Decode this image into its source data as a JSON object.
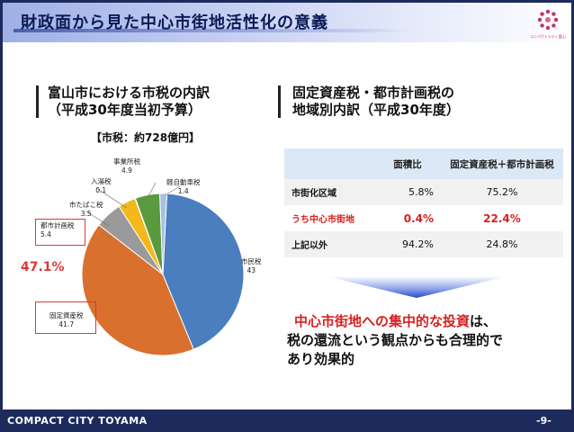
{
  "slide": {
    "title": "財政面から見た中心市街地活性化の意義",
    "logo_text": "コンパクトシティ富山"
  },
  "left_section": {
    "heading_line1": "富山市における市税の内訳",
    "heading_line2": "（平成30年度当初予算）",
    "total_label": "【市税：約728億円】",
    "highlight_percent": "47.1%"
  },
  "chart_data": {
    "type": "pie",
    "title": "【市税：約728億円】",
    "slices": [
      {
        "label": "市民税",
        "value": 43.0,
        "color": "#4a7ebf"
      },
      {
        "label": "固定資産税",
        "value": 41.7,
        "color": "#d9702d"
      },
      {
        "label": "都市計画税",
        "value": 5.4,
        "color": "#9a9a9a"
      },
      {
        "label": "市たばこ税",
        "value": 3.5,
        "color": "#f2b81c"
      },
      {
        "label": "入湯税",
        "value": 0.1,
        "color": "#3568b0"
      },
      {
        "label": "事業所税",
        "value": 4.9,
        "color": "#5a9a3e"
      },
      {
        "label": "軽自動車税",
        "value": 1.4,
        "color": "#a8c0e3"
      }
    ]
  },
  "right_section": {
    "heading_line1": "固定資産税・都市計画税の",
    "heading_line2": "地域別内訳（平成30年度）",
    "table": {
      "headers": [
        "",
        "面積比",
        "固定資産税＋都市計画税"
      ],
      "rows": [
        [
          "市街化区域",
          "5.8%",
          "75.2%"
        ],
        [
          "うち中心市街地",
          "0.4%",
          "22.4%"
        ],
        [
          "上記以外",
          "94.2%",
          "24.8%"
        ]
      ]
    },
    "conclusion_highlight": "中心市街地への集中的な投資",
    "conclusion_rest1": "は、",
    "conclusion_line2": "税の還流という観点からも合理的で",
    "conclusion_line3": "あり効果的"
  },
  "footer": {
    "left": "COMPACT CITY TOYAMA",
    "right": "-9-"
  }
}
